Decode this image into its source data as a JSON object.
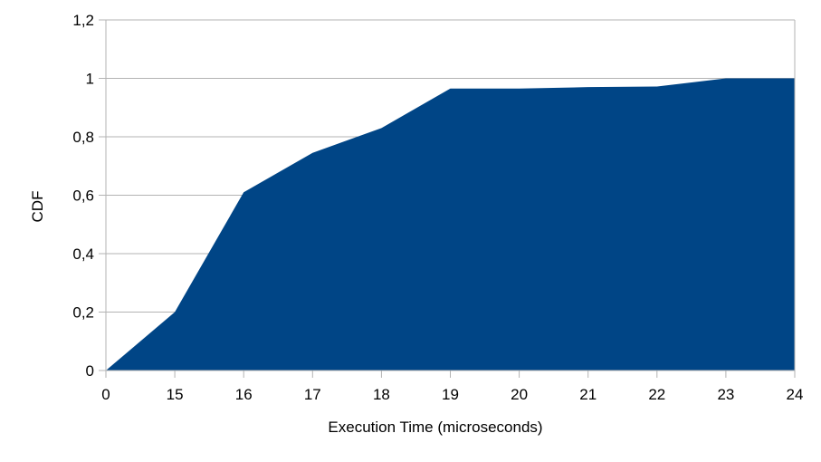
{
  "chart_data": {
    "type": "area",
    "title": "",
    "xlabel": "Execution Time (microseconds)",
    "ylabel": "CDF",
    "categories": [
      "0",
      "15",
      "16",
      "17",
      "18",
      "19",
      "20",
      "21",
      "22",
      "23",
      "24"
    ],
    "series": [
      {
        "values": [
          0,
          0.2,
          0.61,
          0.745,
          0.83,
          0.965,
          0.965,
          0.97,
          0.972,
          1.0,
          1.0
        ],
        "color": "#004586"
      }
    ],
    "ylim": [
      0,
      1.2
    ],
    "yticks": [
      "0",
      "0,2",
      "0,4",
      "0,6",
      "0,8",
      "1",
      "1,2"
    ],
    "grid": true,
    "legend": "none",
    "colors": {
      "area": "#004586",
      "grid": "#b3b3b3",
      "background": "#ffffff"
    }
  }
}
